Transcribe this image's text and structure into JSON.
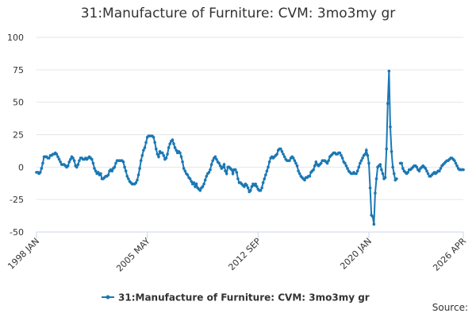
{
  "chart_data": {
    "type": "line",
    "title": "31:Manufacture of Furniture: CVM: 3mo3my gr",
    "source": "Source:",
    "categories": [
      "1998 JAN",
      null,
      null,
      null,
      null,
      null,
      null,
      null,
      null,
      null,
      null,
      null,
      null,
      null,
      null,
      null,
      null,
      null,
      null,
      null,
      null,
      null,
      null,
      null,
      null,
      null,
      null,
      null,
      null,
      null,
      null,
      null,
      null,
      null,
      null,
      null,
      null,
      null,
      null,
      null,
      null,
      null,
      null,
      null,
      null,
      null,
      null,
      null,
      null,
      null,
      null,
      null,
      null,
      null,
      null,
      null,
      null,
      null,
      null,
      null,
      null,
      null,
      null,
      null,
      null,
      null,
      null,
      null,
      null,
      null,
      null,
      null,
      null,
      null,
      null,
      null,
      null,
      null,
      null,
      null,
      null,
      null,
      null,
      null,
      null,
      null,
      null,
      null,
      "2005 MAY",
      null,
      null,
      null,
      null,
      null,
      null,
      null,
      null,
      null,
      null,
      null,
      null,
      null,
      null,
      null,
      null,
      null,
      null,
      null,
      null,
      null,
      null,
      null,
      null,
      null,
      null,
      null,
      null,
      null,
      null,
      null,
      null,
      null,
      null,
      null,
      null,
      null,
      null,
      null,
      null,
      null,
      null,
      null,
      null,
      null,
      null,
      null,
      null,
      null,
      null,
      null,
      null,
      null,
      null,
      null,
      null,
      null,
      null,
      null,
      null,
      null,
      null,
      null,
      null,
      null,
      null,
      null,
      null,
      null,
      null,
      null,
      null,
      null,
      null,
      null,
      null,
      null,
      null,
      null,
      null,
      null,
      null,
      null,
      null,
      null,
      null,
      null,
      "2012 SEP",
      null,
      null,
      null,
      null,
      null,
      null,
      null,
      null,
      null,
      null,
      null,
      null,
      null,
      null,
      null,
      null,
      null,
      null,
      null,
      null,
      null,
      null,
      null,
      null,
      null,
      null,
      null,
      null,
      null,
      null,
      null,
      null,
      null,
      null,
      null,
      null,
      null,
      null,
      null,
      null,
      null,
      null,
      null,
      null,
      null,
      null,
      null,
      null,
      null,
      null,
      null,
      null,
      null,
      null,
      null,
      null,
      null,
      null,
      null,
      null,
      null,
      null,
      null,
      null,
      null,
      null,
      null,
      null,
      null,
      null,
      null,
      null,
      null,
      null,
      null,
      null,
      null,
      null,
      null,
      null,
      null,
      null,
      null,
      null,
      null,
      null,
      null,
      "2020 JAN",
      null,
      null,
      null,
      null,
      null,
      null,
      null,
      null,
      null,
      null,
      null,
      null,
      null,
      null,
      null,
      null,
      null,
      null,
      null,
      null,
      null,
      null,
      null,
      null,
      null,
      null,
      null,
      null,
      null,
      null,
      null,
      null,
      null,
      null,
      null,
      null,
      null,
      null,
      null,
      null,
      null,
      null,
      null,
      null,
      null,
      null,
      null,
      null,
      null,
      null,
      null,
      null,
      null,
      null,
      null,
      null,
      null,
      null,
      null,
      null,
      null,
      null,
      null,
      null,
      null,
      null,
      null,
      null,
      null,
      null,
      null,
      null,
      null,
      null,
      "2026 APR"
    ],
    "series": [
      {
        "name": "31:Manufacture of Furniture: CVM: 3mo3my gr",
        "color": "#1a78b4",
        "values": [
          -4,
          -4,
          -5,
          -4,
          -1,
          3,
          8,
          8,
          8,
          7,
          7,
          9,
          9,
          10,
          10,
          11,
          10,
          8,
          6,
          4,
          2,
          2,
          2,
          1,
          0,
          1,
          4,
          6,
          8,
          7,
          5,
          1,
          0,
          2,
          5,
          7,
          7,
          6,
          6,
          7,
          6,
          7,
          8,
          7,
          6,
          3,
          -1,
          -3,
          -5,
          -4,
          -6,
          -5,
          -9,
          -9,
          -8,
          -7,
          -7,
          -6,
          -3,
          -2,
          -3,
          -1,
          0,
          3,
          5,
          5,
          5,
          5,
          5,
          4,
          0,
          -3,
          -7,
          -9,
          -11,
          -12,
          -13,
          -13,
          -13,
          -12,
          -10,
          -6,
          -1,
          5,
          9,
          13,
          15,
          19,
          23,
          24,
          24,
          24,
          24,
          23,
          19,
          14,
          10,
          8,
          12,
          11,
          11,
          9,
          6,
          7,
          10,
          15,
          18,
          20,
          21,
          18,
          15,
          13,
          11,
          12,
          11,
          8,
          4,
          -1,
          -3,
          -5,
          -6,
          -8,
          -9,
          -11,
          -13,
          -12,
          -15,
          -13,
          -16,
          -17,
          -18,
          -16,
          -15,
          -13,
          -10,
          -7,
          -5,
          -4,
          -2,
          2,
          5,
          7,
          8,
          6,
          4,
          3,
          1,
          -1,
          0,
          2,
          -3,
          -5,
          0,
          0,
          -1,
          -2,
          -5,
          -2,
          -2,
          -4,
          -9,
          -12,
          -12,
          -13,
          -14,
          -15,
          -13,
          -14,
          -16,
          -19,
          -18,
          -15,
          -13,
          -14,
          -13,
          -15,
          -17,
          -18,
          -18,
          -16,
          -12,
          -9,
          -6,
          -3,
          0,
          4,
          7,
          8,
          7,
          8,
          9,
          10,
          13,
          14,
          14,
          12,
          10,
          8,
          6,
          5,
          5,
          5,
          7,
          8,
          7,
          5,
          3,
          1,
          -3,
          -5,
          -7,
          -8,
          -9,
          -10,
          -8,
          -8,
          -7,
          -7,
          -4,
          -3,
          -2,
          1,
          4,
          2,
          1,
          2,
          3,
          5,
          5,
          5,
          4,
          3,
          5,
          8,
          9,
          10,
          11,
          11,
          10,
          10,
          11,
          11,
          9,
          7,
          4,
          3,
          1,
          -1,
          -3,
          -4,
          -5,
          -5,
          -4,
          -5,
          -5,
          -3,
          0,
          3,
          5,
          7,
          9,
          10,
          13,
          9,
          3,
          -16,
          -37,
          -38,
          -44,
          -20,
          -9,
          0,
          1,
          2,
          -2,
          -5,
          -9,
          -8,
          14,
          49,
          74,
          31,
          12,
          0,
          -5,
          -10,
          -9,
          null,
          null,
          3,
          3,
          -1,
          -3,
          -4,
          -5,
          -4,
          -2,
          -2,
          -1,
          0,
          1,
          1,
          0,
          -2,
          -3,
          -1,
          0,
          1,
          0,
          -1,
          -3,
          -5,
          -7,
          -7,
          -6,
          -5,
          -4,
          -5,
          -4,
          -3,
          -3,
          -1,
          1,
          2,
          3,
          4,
          5,
          5,
          6,
          7,
          7,
          6,
          5,
          3,
          1,
          -1,
          -2,
          -2,
          -2,
          -2
        ]
      }
    ],
    "ylim": [
      -50,
      100
    ],
    "yticks": [
      100,
      75,
      50,
      25,
      0,
      -25,
      -50
    ],
    "grid": true,
    "legend": "bottom"
  }
}
